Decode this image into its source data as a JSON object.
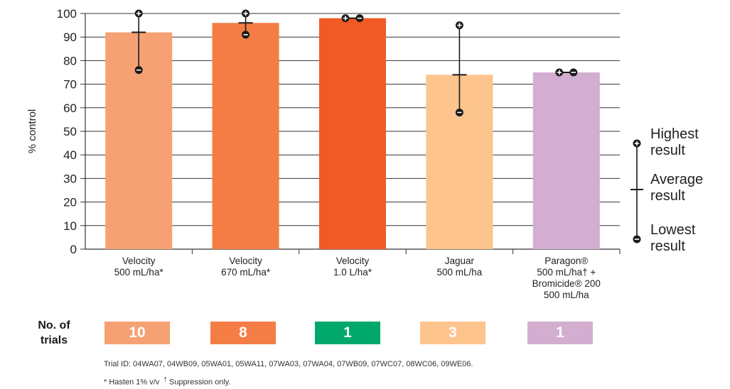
{
  "chart_data": {
    "type": "bar",
    "ylabel": "% control",
    "ylim": [
      0,
      100
    ],
    "yticks": [
      0,
      10,
      20,
      30,
      40,
      50,
      60,
      70,
      80,
      90,
      100
    ],
    "grid": true,
    "categories": [
      {
        "lines": [
          "Velocity",
          "500 mL/ha*"
        ]
      },
      {
        "lines": [
          "Velocity",
          "670 mL/ha*"
        ]
      },
      {
        "lines": [
          "Velocity",
          "1.0 L/ha*"
        ]
      },
      {
        "lines": [
          "Jaguar",
          "500 mL/ha"
        ]
      },
      {
        "lines": [
          "Paragon®",
          "500 mL/ha† +",
          "Bromicide® 200",
          "500 mL/ha"
        ]
      }
    ],
    "values": [
      92,
      96,
      98,
      74,
      75
    ],
    "highest": [
      100,
      100,
      98,
      95,
      75
    ],
    "lowest": [
      76,
      91,
      98,
      58,
      75
    ],
    "colors": [
      "#f6a173",
      "#f47d46",
      "#f15a24",
      "#fdc48d",
      "#d3aed0"
    ]
  },
  "legend": {
    "highest": [
      "Highest",
      "result"
    ],
    "average": [
      "Average",
      "result"
    ],
    "lowest": [
      "Lowest",
      "result"
    ]
  },
  "trials": {
    "title_line1": "No. of",
    "title_line2": "trials",
    "counts": [
      "10",
      "8",
      "1",
      "3",
      "1"
    ],
    "colors": [
      "#f6a173",
      "#f47d46",
      "#00a86b",
      "#fdc48d",
      "#d3aed0"
    ]
  },
  "footnotes": {
    "trial_ids": "Trial ID: 04WA07, 04WB09, 05WA01, 05WA11, 07WA03, 07WA04, 07WB09, 07WC07, 08WC06, 09WE06.",
    "hasten": "* Hasten 1% v/v",
    "dagger": "†",
    "suppression": "Suppression only."
  }
}
